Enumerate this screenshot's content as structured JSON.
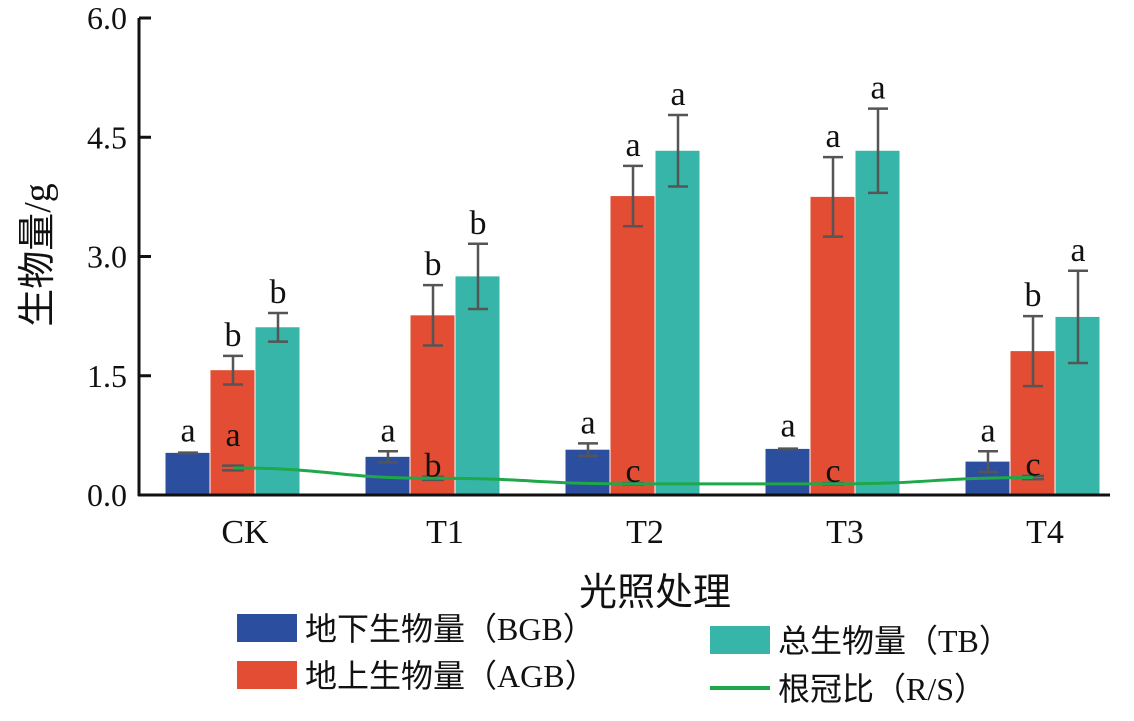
{
  "chart_data": {
    "type": "bar",
    "title": "",
    "xlabel": "光照处理",
    "ylabel": "生物量/g",
    "ylim": [
      0,
      6.0
    ],
    "yticks": [
      "0.0",
      "1.5",
      "3.0",
      "4.5",
      "6.0"
    ],
    "ytick_values": [
      0,
      1.5,
      3.0,
      4.5,
      6.0
    ],
    "grid": false,
    "categories": [
      "CK",
      "T1",
      "T2",
      "T3",
      "T4"
    ],
    "series": [
      {
        "name": "地下生物量（BGB）",
        "kind": "bar",
        "color": "#2b4f9e",
        "values": [
          0.53,
          0.48,
          0.57,
          0.58,
          0.42
        ],
        "errors": [
          0.02,
          0.07,
          0.08,
          0.03,
          0.13
        ],
        "letters": [
          "a",
          "a",
          "a",
          "a",
          "a"
        ]
      },
      {
        "name": "地上生物量（AGB）",
        "kind": "bar",
        "color": "#e24d33",
        "values": [
          1.57,
          2.26,
          3.76,
          3.75,
          1.81
        ],
        "errors": [
          0.18,
          0.38,
          0.38,
          0.5,
          0.44
        ],
        "letters": [
          "b",
          "b",
          "a",
          "a",
          "b"
        ]
      },
      {
        "name": "总生物量（TB）",
        "kind": "bar",
        "color": "#37b5a8",
        "values": [
          2.11,
          2.75,
          4.33,
          4.33,
          2.24
        ],
        "errors": [
          0.18,
          0.41,
          0.45,
          0.53,
          0.58
        ],
        "letters": [
          "b",
          "b",
          "a",
          "a",
          "a"
        ]
      },
      {
        "name": "根冠比（R/S）",
        "kind": "line",
        "color": "#1ea84a",
        "values": [
          0.34,
          0.21,
          0.14,
          0.14,
          0.22
        ],
        "errors": [
          0.03,
          0.02,
          0.01,
          0.01,
          0.02
        ],
        "letters": [
          "a",
          "b",
          "c",
          "c",
          "c"
        ]
      }
    ],
    "legend_position": "bottom"
  }
}
